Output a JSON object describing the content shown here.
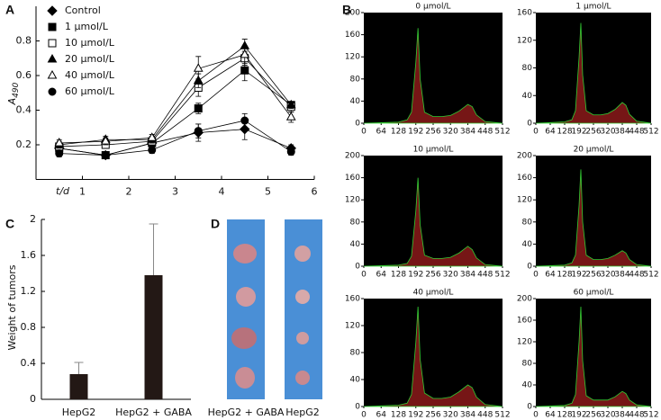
{
  "panel_labels": [
    "A",
    "B",
    "C",
    "D"
  ],
  "photo": {
    "labels": [
      "HepG2 + GABA",
      "HepG2"
    ]
  },
  "chart_data": [
    {
      "type": "line",
      "ylabel": "A",
      "ylabel_sub": "490",
      "xlabel": "t/d",
      "x": [
        0.5,
        1.5,
        2.5,
        3.5,
        4.5,
        5.5
      ],
      "xlim": [
        0,
        6
      ],
      "xticks": [
        1,
        2,
        3,
        4,
        5,
        6
      ],
      "ylim": [
        0,
        1
      ],
      "yticks": [
        0.2,
        0.4,
        0.6,
        0.8
      ],
      "legend": "upper-left",
      "series": [
        {
          "name": "Control",
          "color": "#000000",
          "marker": "diamond",
          "values": [
            0.18,
            0.14,
            0.21,
            0.27,
            0.29,
            0.18
          ],
          "errors": [
            0.02,
            0.02,
            0.02,
            0.05,
            0.06,
            0.02
          ]
        },
        {
          "name": "1 μmol/L",
          "color": "#000000",
          "marker": "square",
          "values": [
            0.18,
            0.14,
            0.21,
            0.41,
            0.63,
            0.43
          ],
          "errors": [
            0.02,
            0.02,
            0.02,
            0.03,
            0.06,
            0.02
          ]
        },
        {
          "name": "10 μmol/L",
          "color": "#000000",
          "marker": "square-open",
          "values": [
            0.19,
            0.2,
            0.22,
            0.53,
            0.7,
            0.42
          ],
          "errors": [
            0.02,
            0.02,
            0.02,
            0.05,
            0.04,
            0.03
          ]
        },
        {
          "name": "20 μmol/L",
          "color": "#000000",
          "marker": "triangle",
          "values": [
            0.2,
            0.23,
            0.23,
            0.57,
            0.77,
            0.43
          ],
          "errors": [
            0.02,
            0.02,
            0.02,
            0.04,
            0.04,
            0.02
          ]
        },
        {
          "name": "40 μmol/L",
          "color": "#000000",
          "marker": "triangle-open",
          "values": [
            0.21,
            0.22,
            0.24,
            0.64,
            0.72,
            0.36
          ],
          "errors": [
            0.02,
            0.02,
            0.02,
            0.07,
            0.05,
            0.03
          ]
        },
        {
          "name": "60 μmol/L",
          "color": "#000000",
          "marker": "circle",
          "values": [
            0.15,
            0.14,
            0.17,
            0.28,
            0.34,
            0.16
          ],
          "errors": [
            0.02,
            0.02,
            0.02,
            0.04,
            0.04,
            0.02
          ]
        }
      ]
    },
    {
      "type": "area",
      "title": "0 μmol/L",
      "color": "#8b1a1a",
      "line_color": "#33cc33",
      "xlim": [
        0,
        512
      ],
      "xticks": [
        0,
        64,
        128,
        192,
        256,
        320,
        384,
        448,
        512
      ],
      "ylim": [
        0,
        200
      ],
      "yticks": [
        0,
        40,
        80,
        120,
        160,
        200
      ],
      "x": [
        0,
        128,
        160,
        176,
        192,
        200,
        208,
        224,
        256,
        288,
        320,
        352,
        384,
        400,
        416,
        448,
        512
      ],
      "values": [
        0,
        2,
        6,
        20,
        110,
        172,
        80,
        20,
        12,
        12,
        14,
        22,
        34,
        30,
        15,
        3,
        0
      ]
    },
    {
      "type": "area",
      "title": "1 μmol/L",
      "color": "#8b1a1a",
      "line_color": "#33cc33",
      "xlim": [
        0,
        512
      ],
      "xticks": [
        0,
        64,
        128,
        192,
        256,
        320,
        384,
        448,
        512
      ],
      "ylim": [
        0,
        160
      ],
      "yticks": [
        0,
        40,
        80,
        120,
        160
      ],
      "x": [
        0,
        128,
        160,
        176,
        192,
        200,
        208,
        224,
        256,
        288,
        320,
        352,
        384,
        400,
        416,
        448,
        512
      ],
      "values": [
        0,
        2,
        5,
        18,
        95,
        145,
        70,
        18,
        12,
        12,
        14,
        20,
        30,
        26,
        13,
        3,
        0
      ]
    },
    {
      "type": "area",
      "title": "10 μmol/L",
      "color": "#8b1a1a",
      "line_color": "#33cc33",
      "xlim": [
        0,
        512
      ],
      "xticks": [
        0,
        64,
        128,
        192,
        256,
        320,
        384,
        448,
        512
      ],
      "ylim": [
        0,
        200
      ],
      "yticks": [
        0,
        40,
        80,
        120,
        160,
        200
      ],
      "x": [
        0,
        128,
        160,
        176,
        192,
        200,
        208,
        224,
        256,
        288,
        320,
        352,
        384,
        400,
        416,
        448,
        512
      ],
      "values": [
        0,
        2,
        5,
        18,
        100,
        160,
        75,
        20,
        14,
        14,
        16,
        24,
        36,
        30,
        15,
        3,
        0
      ]
    },
    {
      "type": "area",
      "title": "20 μmol/L",
      "color": "#8b1a1a",
      "line_color": "#33cc33",
      "xlim": [
        0,
        512
      ],
      "xticks": [
        0,
        64,
        128,
        192,
        256,
        320,
        384,
        448,
        512
      ],
      "ylim": [
        0,
        200
      ],
      "yticks": [
        0,
        40,
        80,
        120,
        160,
        200
      ],
      "x": [
        0,
        128,
        160,
        176,
        192,
        200,
        208,
        224,
        256,
        288,
        320,
        352,
        384,
        400,
        416,
        448,
        512
      ],
      "values": [
        0,
        2,
        6,
        20,
        110,
        175,
        80,
        20,
        12,
        12,
        14,
        20,
        28,
        24,
        12,
        3,
        0
      ]
    },
    {
      "type": "area",
      "title": "40 μmol/L",
      "color": "#8b1a1a",
      "line_color": "#33cc33",
      "xlim": [
        0,
        512
      ],
      "xticks": [
        0,
        64,
        128,
        192,
        256,
        320,
        384,
        448,
        512
      ],
      "ylim": [
        0,
        160
      ],
      "yticks": [
        0,
        40,
        80,
        120,
        160
      ],
      "x": [
        0,
        128,
        160,
        176,
        192,
        200,
        208,
        224,
        256,
        288,
        320,
        352,
        384,
        400,
        416,
        448,
        512
      ],
      "values": [
        0,
        2,
        5,
        18,
        95,
        148,
        70,
        20,
        12,
        12,
        14,
        22,
        32,
        28,
        14,
        3,
        0
      ]
    },
    {
      "type": "area",
      "title": "60 μmol/L",
      "color": "#8b1a1a",
      "line_color": "#33cc33",
      "xlim": [
        0,
        512
      ],
      "xticks": [
        0,
        64,
        128,
        192,
        256,
        320,
        384,
        448,
        512
      ],
      "ylim": [
        0,
        200
      ],
      "yticks": [
        0,
        40,
        80,
        120,
        160,
        200
      ],
      "x": [
        0,
        128,
        160,
        176,
        192,
        200,
        208,
        224,
        256,
        288,
        320,
        352,
        384,
        400,
        416,
        448,
        512
      ],
      "values": [
        0,
        2,
        6,
        22,
        120,
        185,
        85,
        20,
        12,
        12,
        12,
        18,
        28,
        24,
        12,
        3,
        0
      ]
    },
    {
      "type": "bar",
      "ylabel": "Weight of tumors",
      "categories": [
        "HepG2",
        "HepG2 + GABA"
      ],
      "values": [
        0.28,
        1.38
      ],
      "errors": [
        0.13,
        0.57
      ],
      "color": "#231815",
      "ylim": [
        0,
        2
      ],
      "yticks": [
        0,
        0.4,
        0.8,
        1.2,
        1.6,
        2
      ]
    }
  ]
}
